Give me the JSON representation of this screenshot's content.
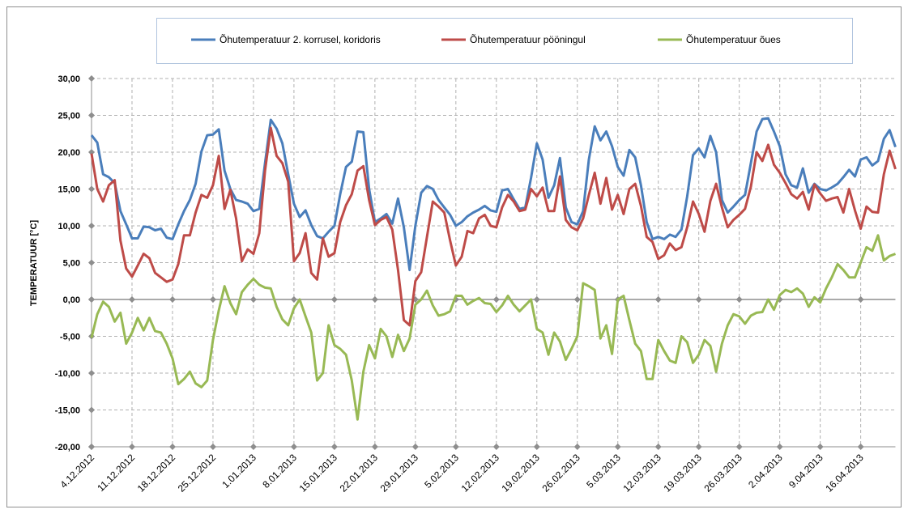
{
  "chart_data": {
    "type": "line",
    "y_label": "TEMPERATUUR [°C]",
    "categories": [
      "4.12.2012",
      null,
      null,
      null,
      null,
      null,
      null,
      "11.12.2012",
      null,
      null,
      null,
      null,
      null,
      null,
      "18.12.2012",
      null,
      null,
      null,
      null,
      null,
      null,
      "25.12.2012",
      null,
      null,
      null,
      null,
      null,
      null,
      "1.01.2013",
      null,
      null,
      null,
      null,
      null,
      null,
      "8.01.2013",
      null,
      null,
      null,
      null,
      null,
      null,
      "15.01.2013",
      null,
      null,
      null,
      null,
      null,
      null,
      "22.01.2013",
      null,
      null,
      null,
      null,
      null,
      null,
      "29.01.2013",
      null,
      null,
      null,
      null,
      null,
      null,
      "5.02.2013",
      null,
      null,
      null,
      null,
      null,
      null,
      "12.02.2013",
      null,
      null,
      null,
      null,
      null,
      null,
      "19.02.2013",
      null,
      null,
      null,
      null,
      null,
      null,
      "26.02.2013",
      null,
      null,
      null,
      null,
      null,
      null,
      "5.03.2013",
      null,
      null,
      null,
      null,
      null,
      null,
      "12.03.2013",
      null,
      null,
      null,
      null,
      null,
      null,
      "19.03.2013",
      null,
      null,
      null,
      null,
      null,
      null,
      "26.03.2013",
      null,
      null,
      null,
      null,
      null,
      null,
      "2.04.2013",
      null,
      null,
      null,
      null,
      null,
      null,
      "9.04.2013",
      null,
      null,
      null,
      null,
      null,
      null,
      "16.04.2013",
      null,
      null,
      null,
      null,
      null,
      null
    ],
    "ylim": [
      -20,
      30
    ],
    "yticks": [
      {
        "value": -20,
        "label": "-20,00"
      },
      {
        "value": -15,
        "label": "-15,00"
      },
      {
        "value": -10,
        "label": "-10,00"
      },
      {
        "value": -5,
        "label": "-5,00"
      },
      {
        "value": 0,
        "label": "0,00"
      },
      {
        "value": 5,
        "label": "5,00"
      },
      {
        "value": 10,
        "label": "10,00"
      },
      {
        "value": 15,
        "label": "15,00"
      },
      {
        "value": 20,
        "label": "20,00"
      },
      {
        "value": 25,
        "label": "25,00"
      },
      {
        "value": 30,
        "label": "30,00"
      }
    ],
    "grid": true,
    "legend": "top",
    "series": [
      {
        "name": "Õhutemperatuur 2. korrusel, koridoris",
        "color": "#4a7ebb",
        "values": [
          22.3,
          21.3,
          17,
          16.6,
          15.8,
          12,
          10.2,
          8.3,
          8.3,
          9.9,
          9.8,
          9.4,
          9.6,
          8.4,
          8.2,
          10.2,
          12,
          13.5,
          15.7,
          20.1,
          22.3,
          22.4,
          23.1,
          17.5,
          15,
          13.5,
          13.3,
          13,
          12,
          12.3,
          18.5,
          24.4,
          23.2,
          21.2,
          17,
          13,
          11.2,
          12.1,
          10.1,
          8.6,
          8.3,
          9.2,
          10,
          14.3,
          18,
          18.7,
          22.8,
          22.7,
          15,
          10.5,
          11,
          11.6,
          10.3,
          13.7,
          9.8,
          4,
          10,
          14.5,
          15.4,
          15,
          13.5,
          12.5,
          11.5,
          10,
          10.5,
          11.3,
          11.8,
          12.2,
          12.7,
          12.1,
          11.9,
          14.8,
          15,
          13.6,
          12.3,
          12.5,
          16.5,
          21.2,
          19,
          13.8,
          15.5,
          19.2,
          12.5,
          10.5,
          10.2,
          12,
          19,
          23.5,
          21.6,
          22.8,
          20.8,
          18,
          16.8,
          20.3,
          19.3,
          15.5,
          10.5,
          8.2,
          8.5,
          8.2,
          8.8,
          8.5,
          9.5,
          14,
          19.6,
          20.5,
          19.3,
          22.2,
          20,
          13.5,
          11.8,
          12.6,
          13.5,
          14.2,
          18.5,
          22.8,
          24.5,
          24.6,
          22.8,
          20.8,
          17,
          15.5,
          15.2,
          17.8,
          14.5,
          15.7,
          15,
          14.8,
          15.2,
          15.7,
          16.6,
          17.6,
          16.7,
          19,
          19.3,
          18.2,
          18.8,
          21.8,
          23,
          20.7
        ]
      },
      {
        "name": "Õhutemperatuur pööningul",
        "color": "#be4b48",
        "values": [
          19.8,
          15,
          13.3,
          15.5,
          16.2,
          8,
          4.2,
          3.1,
          4.6,
          6.2,
          5.6,
          3.6,
          3,
          2.4,
          2.7,
          4.8,
          8.7,
          8.7,
          11.8,
          14.2,
          13.8,
          15.5,
          19.5,
          12.3,
          14.9,
          11,
          5.2,
          6.8,
          6.2,
          9,
          17.5,
          23.3,
          19.5,
          18.5,
          16,
          5.2,
          6.3,
          9,
          3.6,
          2.7,
          8.3,
          5.8,
          6.3,
          10.5,
          12.8,
          14.3,
          17.5,
          18.1,
          13.5,
          10.1,
          10.8,
          11.2,
          9.5,
          4,
          -2.8,
          -3.5,
          2.5,
          3.7,
          8.5,
          13.3,
          12.6,
          11.8,
          8,
          4.6,
          5.8,
          9.3,
          9,
          11,
          11.5,
          10,
          9.8,
          12.5,
          14.2,
          13.3,
          12,
          12.2,
          15,
          14,
          15.2,
          12,
          12,
          16.7,
          10.8,
          9.8,
          9.4,
          11,
          14.2,
          17.2,
          13,
          16.5,
          12.2,
          14.2,
          11.6,
          15,
          15.7,
          12.7,
          8.5,
          7.8,
          5.5,
          6,
          7.6,
          6.7,
          7.1,
          9.8,
          13.3,
          11.6,
          9.2,
          13.4,
          15.7,
          12.5,
          9.8,
          10.8,
          11.5,
          12.3,
          15.3,
          20,
          18.8,
          21,
          18.3,
          17.2,
          15.8,
          14.3,
          13.7,
          14.6,
          12.2,
          15.6,
          14.4,
          13.4,
          13.7,
          13.9,
          11.8,
          15,
          12.1,
          9.6,
          12.6,
          11.9,
          11.8,
          17,
          20.2,
          17.7
        ]
      },
      {
        "name": "Õhutemperatuur õues",
        "color": "#98b954",
        "values": [
          -5.2,
          -2,
          -0.3,
          -1,
          -3,
          -1.8,
          -6,
          -4.5,
          -2.5,
          -4.2,
          -2.5,
          -4.3,
          -4.5,
          -6,
          -8,
          -11.5,
          -10.8,
          -9.8,
          -11.4,
          -11.9,
          -11,
          -5.5,
          -1.5,
          1.8,
          -0.5,
          -2,
          1,
          2,
          2.8,
          2,
          1.6,
          1.5,
          -1,
          -2.7,
          -3.5,
          -1.2,
          0,
          -2.3,
          -4.5,
          -11,
          -10,
          -3.5,
          -6.2,
          -6.7,
          -7.5,
          -11,
          -16.3,
          -9.8,
          -6.2,
          -8,
          -4,
          -5,
          -7.8,
          -4.8,
          -7,
          -5.3,
          -0.7,
          0,
          1.2,
          -0.8,
          -2.2,
          -2,
          -1.6,
          0.5,
          0.5,
          -0.7,
          -0.2,
          0.2,
          -0.5,
          -0.6,
          -1.7,
          -0.8,
          0.5,
          -0.7,
          -1.6,
          -0.8,
          0,
          -4,
          -4.5,
          -7.5,
          -4.5,
          -5.7,
          -8.2,
          -6.7,
          -5,
          2.2,
          1.8,
          1.3,
          -5.3,
          -3.5,
          -7.4,
          0,
          0.5,
          -2.8,
          -6,
          -7,
          -10.8,
          -10.8,
          -5.5,
          -7,
          -8.3,
          -8.6,
          -5,
          -5.8,
          -8.6,
          -7.5,
          -5.5,
          -6.3,
          -9.8,
          -6,
          -3.5,
          -2,
          -2.3,
          -3.3,
          -2.2,
          -1.8,
          -1.7,
          0,
          -1.4,
          0.6,
          1.3,
          1,
          1.5,
          0.8,
          -1,
          0.3,
          -0.4,
          1.5,
          3,
          4.8,
          4,
          3,
          3,
          5,
          7.1,
          6.6,
          8.7,
          5.3,
          5.9,
          6.2
        ]
      }
    ]
  }
}
